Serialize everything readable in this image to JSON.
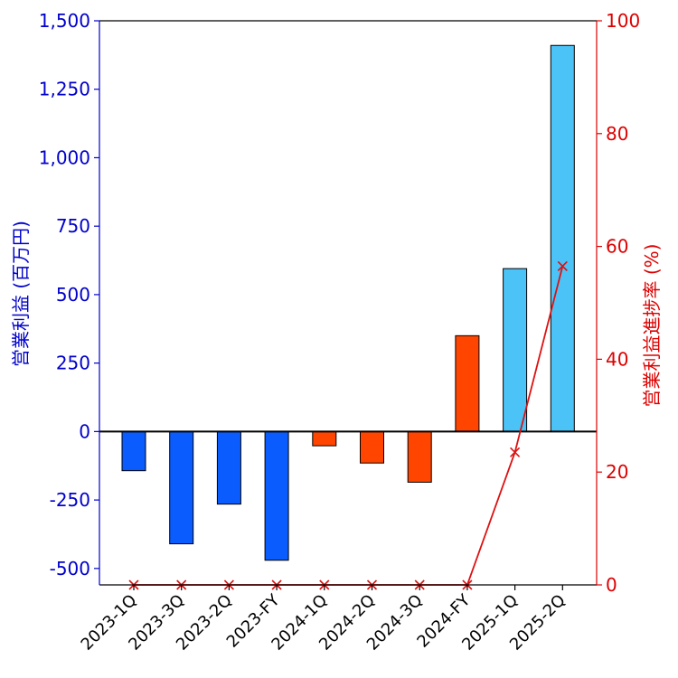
{
  "chart_data": {
    "type": "bar",
    "categories": [
      "2023-1Q",
      "2023-3Q",
      "2023-2Q",
      "2023-FY",
      "2024-1Q",
      "2024-2Q",
      "2024-3Q",
      "2024-FY",
      "2025-1Q",
      "2025-2Q"
    ],
    "series": [
      {
        "name": "営業利益 (百万円)",
        "type": "bar",
        "axis": "left",
        "values": [
          -143,
          -410,
          -265,
          -470,
          -52,
          -115,
          -185,
          350,
          595,
          1410
        ],
        "colors": [
          "#0a5cff",
          "#0a5cff",
          "#0a5cff",
          "#0a5cff",
          "#ff4500",
          "#ff4500",
          "#ff4500",
          "#ff4500",
          "#4bc3f7",
          "#4bc3f7"
        ]
      },
      {
        "name": "営業利益進捗率 (%)",
        "type": "line",
        "axis": "right",
        "marker": "x",
        "color": "#dd1111",
        "values": [
          0,
          0,
          0,
          0,
          0,
          0,
          0,
          0,
          23.5,
          56.5
        ]
      }
    ],
    "title": "",
    "xlabel": "",
    "ylabel": "営業利益 (百万円)",
    "y2label": "営業利益進捗率 (%)",
    "ylim": [
      -560,
      1500
    ],
    "y2lim": [
      0,
      100
    ],
    "yticks": [
      1500,
      1250,
      1000,
      750,
      500,
      250,
      0,
      -250,
      -500
    ],
    "yticklabels": [
      "1,500",
      "1,250",
      "1,000",
      "750",
      "500",
      "250",
      "0",
      "-250",
      "-500"
    ],
    "y2ticks": [
      100,
      80,
      60,
      40,
      20,
      0
    ],
    "y2ticklabels": [
      "100",
      "80",
      "60",
      "40",
      "20",
      "0"
    ],
    "zero_line": true,
    "grid": false
  }
}
